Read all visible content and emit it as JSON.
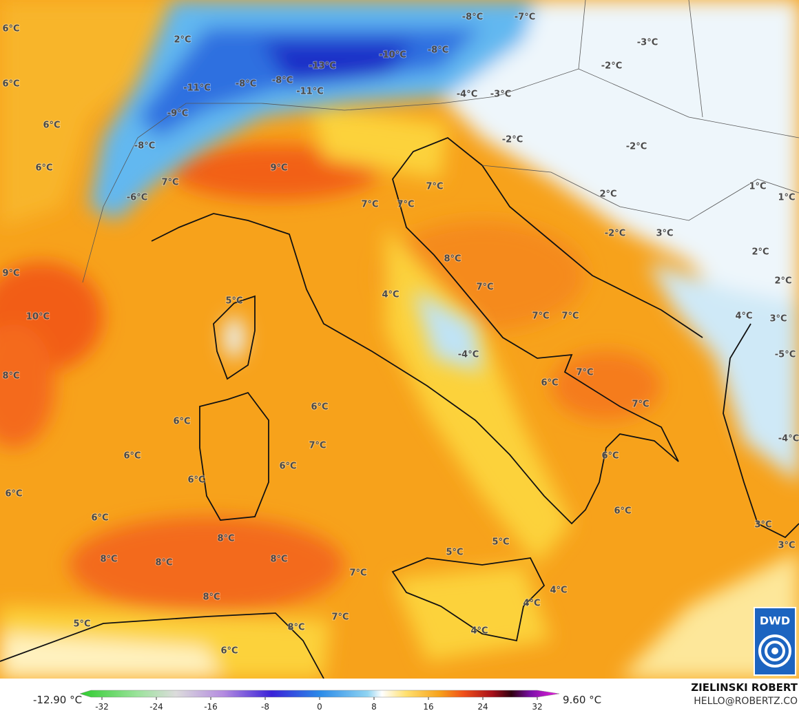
{
  "map": {
    "labels": [
      "6°C",
      "2°C",
      "-8°C",
      "-7°C",
      "-10°C",
      "-8°C",
      "-3°C",
      "6°C",
      "-13°C",
      "-11°C",
      "-8°C",
      "-8°C",
      "-11°C",
      "-2°C",
      "-4°C",
      "-3°C",
      "-9°C",
      "6°C",
      "-8°C",
      "-2°C",
      "-2°C",
      "6°C",
      "9°C",
      "7°C",
      "7°C",
      "1°C",
      "-6°C",
      "2°C",
      "1°C",
      "7°C",
      "7°C",
      "-2°C",
      "3°C",
      "8°C",
      "2°C",
      "9°C",
      "2°C",
      "7°C",
      "5°C",
      "4°C",
      "10°C",
      "7°C",
      "7°C",
      "4°C",
      "3°C",
      "-4°C",
      "-5°C",
      "8°C",
      "7°C",
      "6°C",
      "7°C",
      "6°C",
      "6°C",
      "-4°C",
      "7°C",
      "6°C",
      "6°C",
      "6°C",
      "6°C",
      "6°C",
      "6°C",
      "6°C",
      "3°C",
      "8°C",
      "5°C",
      "3°C",
      "5°C",
      "8°C",
      "8°C",
      "8°C",
      "7°C",
      "4°C",
      "8°C",
      "4°C",
      "7°C",
      "5°C",
      "8°C",
      "4°C",
      "6°C"
    ],
    "logo": "DWD"
  },
  "colorbar": {
    "min_label": "-12.90 °C",
    "max_label": "9.60 °C",
    "ticks": [
      -32,
      -24,
      -16,
      -8,
      0,
      8,
      16,
      24,
      32
    ]
  },
  "credit": {
    "name": "ZIELINSKI ROBERT",
    "contact": "HELLO@ROBERTZ.CO"
  }
}
